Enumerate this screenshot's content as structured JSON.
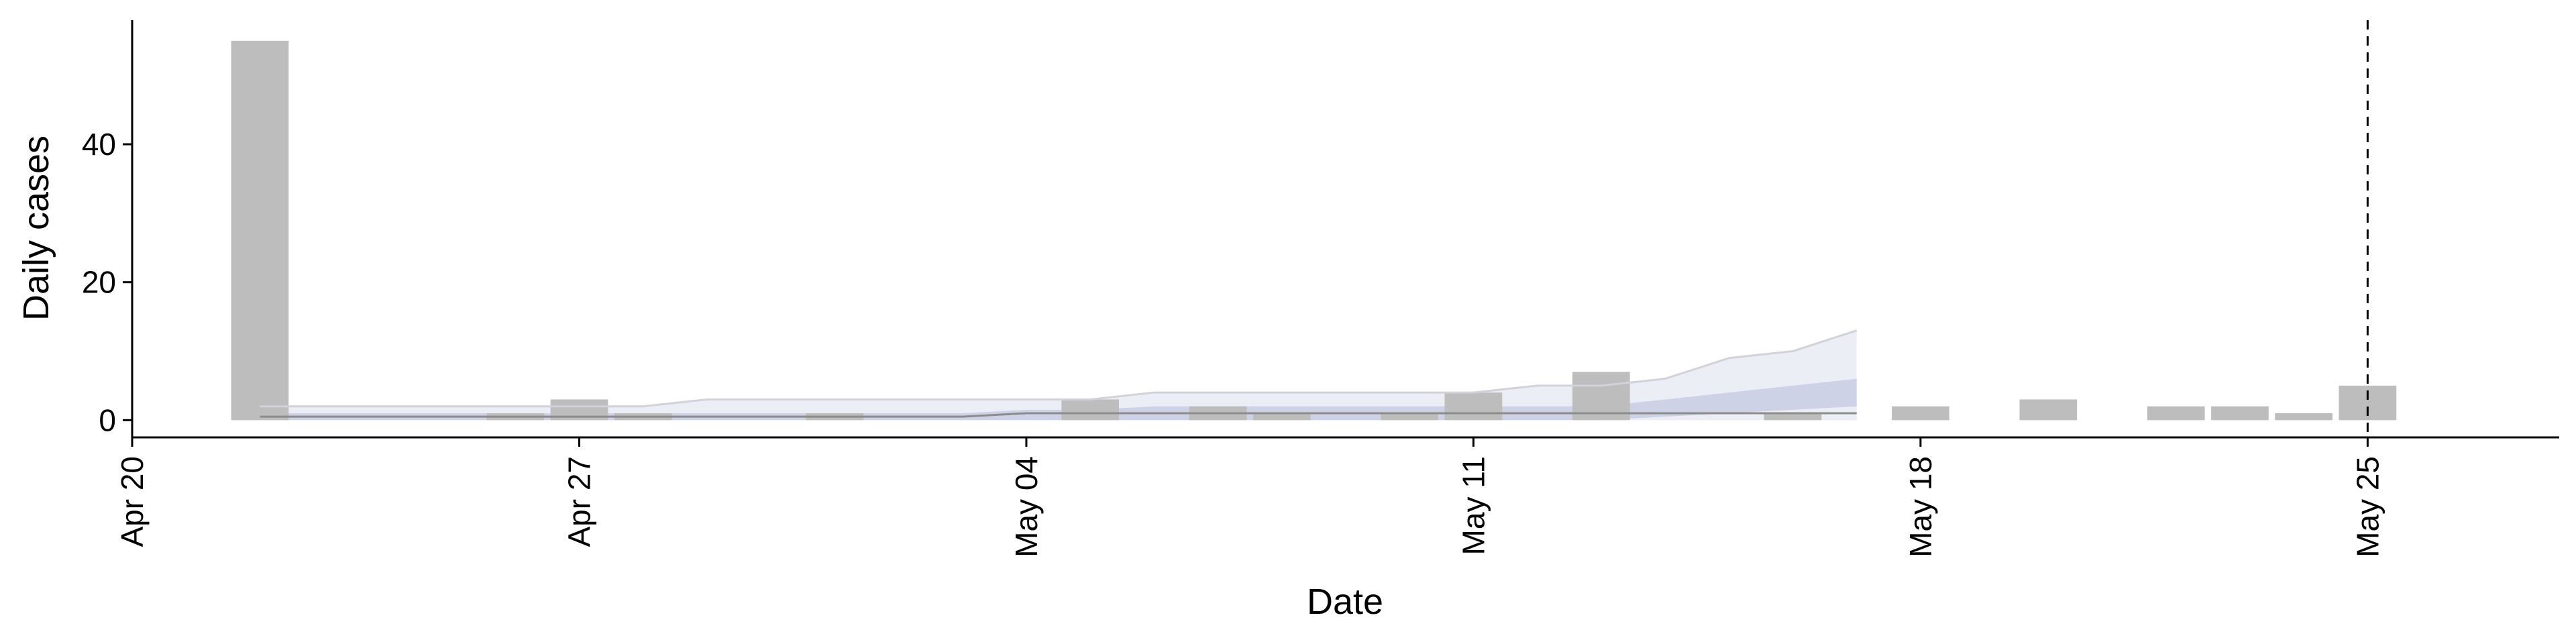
{
  "chart_data": {
    "type": "bar",
    "xlabel": "Date",
    "ylabel": "Daily cases",
    "x_range": [
      "2020-04-20",
      "2020-05-28"
    ],
    "ylim": [
      -2.5,
      58
    ],
    "y_ticks": [
      0,
      20,
      40
    ],
    "x_ticks": [
      {
        "date": "2020-04-20",
        "label": "Apr 20"
      },
      {
        "date": "2020-04-27",
        "label": "Apr 27"
      },
      {
        "date": "2020-05-04",
        "label": "May 04"
      },
      {
        "date": "2020-05-11",
        "label": "May 11"
      },
      {
        "date": "2020-05-18",
        "label": "May 18"
      },
      {
        "date": "2020-05-25",
        "label": "May 25"
      }
    ],
    "bars": [
      {
        "date": "2020-04-22",
        "value": 55
      },
      {
        "date": "2020-04-26",
        "value": 1
      },
      {
        "date": "2020-04-27",
        "value": 3
      },
      {
        "date": "2020-04-28",
        "value": 1
      },
      {
        "date": "2020-05-01",
        "value": 1
      },
      {
        "date": "2020-05-05",
        "value": 3
      },
      {
        "date": "2020-05-07",
        "value": 2
      },
      {
        "date": "2020-05-08",
        "value": 1
      },
      {
        "date": "2020-05-10",
        "value": 1
      },
      {
        "date": "2020-05-11",
        "value": 4
      },
      {
        "date": "2020-05-13",
        "value": 7
      },
      {
        "date": "2020-05-16",
        "value": 1
      },
      {
        "date": "2020-05-18",
        "value": 2
      },
      {
        "date": "2020-05-20",
        "value": 3
      },
      {
        "date": "2020-05-22",
        "value": 2
      },
      {
        "date": "2020-05-23",
        "value": 2
      },
      {
        "date": "2020-05-24",
        "value": 1
      },
      {
        "date": "2020-05-25",
        "value": 5
      }
    ],
    "estimate": {
      "dates": [
        "2020-04-22",
        "2020-04-23",
        "2020-04-24",
        "2020-04-25",
        "2020-04-26",
        "2020-04-27",
        "2020-04-28",
        "2020-04-29",
        "2020-04-30",
        "2020-05-01",
        "2020-05-02",
        "2020-05-03",
        "2020-05-04",
        "2020-05-05",
        "2020-05-06",
        "2020-05-07",
        "2020-05-08",
        "2020-05-09",
        "2020-05-10",
        "2020-05-11",
        "2020-05-12",
        "2020-05-13",
        "2020-05-14",
        "2020-05-15",
        "2020-05-16",
        "2020-05-17"
      ],
      "upper": [
        2,
        2,
        2,
        2,
        2,
        2,
        2,
        3,
        3,
        3,
        3,
        3,
        3,
        3,
        4,
        4,
        4,
        4,
        4,
        4,
        5,
        5,
        6,
        9,
        10,
        13
      ],
      "inner_upper": [
        1,
        1,
        1,
        1,
        1,
        1,
        1,
        1,
        1,
        1,
        1,
        1,
        1.5,
        1.5,
        2,
        2,
        2,
        2,
        2,
        2,
        2,
        2,
        3,
        4,
        5,
        6
      ],
      "inner_lower": [
        0,
        0,
        0,
        0,
        0,
        0,
        0,
        0,
        0,
        0,
        0,
        0,
        0,
        0,
        0,
        0,
        0,
        0,
        0,
        0,
        0,
        0,
        0.5,
        1,
        1.5,
        2
      ],
      "median": [
        0.5,
        0.5,
        0.5,
        0.5,
        0.5,
        0.5,
        0.5,
        0.5,
        0.5,
        0.5,
        0.5,
        0.5,
        1,
        1,
        1,
        1,
        1,
        1,
        1,
        1,
        1,
        1,
        1,
        1,
        1,
        1
      ]
    },
    "vline_date": "2020-05-25",
    "colors": {
      "bar": "#bdbdbd",
      "ribbon_outer": "#e9ebf4",
      "ribbon_inner": "#c9cde3",
      "median_line": "#8c8c8c",
      "upper_line": "#d2d2d8"
    },
    "grid": false,
    "legend": "none"
  }
}
